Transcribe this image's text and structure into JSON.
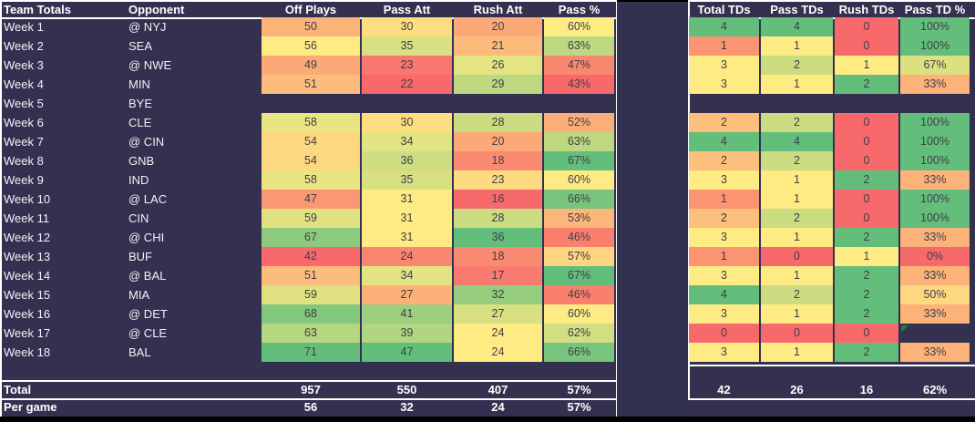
{
  "tables": {
    "left": {
      "headers": [
        "Team Totals",
        "Opponent",
        "Off Plays",
        "Pass Att",
        "Rush Att",
        "Pass %"
      ],
      "total_label": "Total",
      "per_game_label": "Per game",
      "total_values": [
        "957",
        "550",
        "407",
        "57%"
      ],
      "per_game_values": [
        "56",
        "32",
        "24",
        "57%"
      ]
    },
    "right": {
      "headers": [
        "Total TDs",
        "Pass TDs",
        "Rush TDs",
        "Pass TD %"
      ],
      "total_values": [
        "42",
        "26",
        "16",
        "62%"
      ]
    }
  },
  "rows": [
    {
      "week": "Week 1",
      "opponent": "@ NYJ",
      "left": [
        {
          "v": "50",
          "c": "#FCB379"
        },
        {
          "v": "30",
          "c": "#FEDD81"
        },
        {
          "v": "20",
          "c": "#FBAA77"
        },
        {
          "v": "60%",
          "c": "#FFEB84"
        }
      ],
      "right": [
        {
          "v": "4",
          "c": "#63BE7B"
        },
        {
          "v": "4",
          "c": "#63BE7B"
        },
        {
          "v": "0",
          "c": "#F8696B"
        },
        {
          "v": "100%",
          "c": "#63BE7B"
        }
      ]
    },
    {
      "week": "Week 2",
      "opponent": "SEA",
      "left": [
        {
          "v": "56",
          "c": "#FFEB84"
        },
        {
          "v": "35",
          "c": "#D8E082"
        },
        {
          "v": "21",
          "c": "#FCBA7B"
        },
        {
          "v": "63%",
          "c": "#BCD880"
        }
      ],
      "right": [
        {
          "v": "1",
          "c": "#FA9473"
        },
        {
          "v": "1",
          "c": "#FFEB84"
        },
        {
          "v": "0",
          "c": "#F8696B"
        },
        {
          "v": "100%",
          "c": "#63BE7B"
        }
      ]
    },
    {
      "week": "Week 3",
      "opponent": "@ NWE",
      "left": [
        {
          "v": "49",
          "c": "#FBAA77"
        },
        {
          "v": "23",
          "c": "#F9776E"
        },
        {
          "v": "26",
          "c": "#E5E483"
        },
        {
          "v": "47%",
          "c": "#FA8871"
        }
      ],
      "right": [
        {
          "v": "3",
          "c": "#FFEB84"
        },
        {
          "v": "2",
          "c": "#CBDC81"
        },
        {
          "v": "1",
          "c": "#FFEB84"
        },
        {
          "v": "67%",
          "c": "#DCE081"
        }
      ]
    },
    {
      "week": "Week 4",
      "opponent": "MIN",
      "left": [
        {
          "v": "51",
          "c": "#FCBC7B"
        },
        {
          "v": "22",
          "c": "#F8696B"
        },
        {
          "v": "29",
          "c": "#BED880"
        },
        {
          "v": "43%",
          "c": "#F8696B"
        }
      ],
      "right": [
        {
          "v": "3",
          "c": "#FFEB84"
        },
        {
          "v": "1",
          "c": "#FFEB84"
        },
        {
          "v": "2",
          "c": "#63BE7B"
        },
        {
          "v": "33%",
          "c": "#FCB279"
        }
      ]
    },
    {
      "week": "Week 5",
      "opponent": "BYE",
      "left": [],
      "right": []
    },
    {
      "week": "Week 6",
      "opponent": "CLE",
      "left": [
        {
          "v": "58",
          "c": "#EAE583"
        },
        {
          "v": "30",
          "c": "#FEDD81"
        },
        {
          "v": "28",
          "c": "#CBDC81"
        },
        {
          "v": "52%",
          "c": "#FCAE78"
        }
      ],
      "right": [
        {
          "v": "2",
          "c": "#FDC07C"
        },
        {
          "v": "2",
          "c": "#CBDC81"
        },
        {
          "v": "0",
          "c": "#F8696B"
        },
        {
          "v": "100%",
          "c": "#63BE7B"
        }
      ]
    },
    {
      "week": "Week 7",
      "opponent": "@ CIN",
      "left": [
        {
          "v": "54",
          "c": "#FED880"
        },
        {
          "v": "34",
          "c": "#E2E382"
        },
        {
          "v": "20",
          "c": "#FBAA77"
        },
        {
          "v": "63%",
          "c": "#BCD880"
        }
      ],
      "right": [
        {
          "v": "4",
          "c": "#63BE7B"
        },
        {
          "v": "4",
          "c": "#63BE7B"
        },
        {
          "v": "0",
          "c": "#F8696B"
        },
        {
          "v": "100%",
          "c": "#63BE7B"
        }
      ]
    },
    {
      "week": "Week 8",
      "opponent": "GNB",
      "left": [
        {
          "v": "54",
          "c": "#FED880"
        },
        {
          "v": "36",
          "c": "#CEDD81"
        },
        {
          "v": "18",
          "c": "#FA8A71"
        },
        {
          "v": "67%",
          "c": "#63BE7B"
        }
      ],
      "right": [
        {
          "v": "2",
          "c": "#FDC07C"
        },
        {
          "v": "2",
          "c": "#CBDC81"
        },
        {
          "v": "0",
          "c": "#F8696B"
        },
        {
          "v": "100%",
          "c": "#63BE7B"
        }
      ]
    },
    {
      "week": "Week 9",
      "opponent": "IND",
      "left": [
        {
          "v": "58",
          "c": "#EAE583"
        },
        {
          "v": "35",
          "c": "#D8E082"
        },
        {
          "v": "23",
          "c": "#FEDB81"
        },
        {
          "v": "60%",
          "c": "#FFEB84"
        }
      ],
      "right": [
        {
          "v": "3",
          "c": "#FFEB84"
        },
        {
          "v": "1",
          "c": "#FFEB84"
        },
        {
          "v": "2",
          "c": "#63BE7B"
        },
        {
          "v": "33%",
          "c": "#FCB279"
        }
      ]
    },
    {
      "week": "Week 10",
      "opponent": "@ LAC",
      "left": [
        {
          "v": "47",
          "c": "#FA9774"
        },
        {
          "v": "31",
          "c": "#FFEB84"
        },
        {
          "v": "16",
          "c": "#F8696B"
        },
        {
          "v": "66%",
          "c": "#79C47C"
        }
      ],
      "right": [
        {
          "v": "1",
          "c": "#FA9473"
        },
        {
          "v": "1",
          "c": "#FFEB84"
        },
        {
          "v": "0",
          "c": "#F8696B"
        },
        {
          "v": "100%",
          "c": "#63BE7B"
        }
      ]
    },
    {
      "week": "Week 11",
      "opponent": "CIN",
      "left": [
        {
          "v": "59",
          "c": "#E0E282"
        },
        {
          "v": "31",
          "c": "#FFEB84"
        },
        {
          "v": "28",
          "c": "#CBDC81"
        },
        {
          "v": "53%",
          "c": "#FCB57A"
        }
      ],
      "right": [
        {
          "v": "2",
          "c": "#FDC07C"
        },
        {
          "v": "2",
          "c": "#CBDC81"
        },
        {
          "v": "0",
          "c": "#F8696B"
        },
        {
          "v": "100%",
          "c": "#63BE7B"
        }
      ]
    },
    {
      "week": "Week 12",
      "opponent": "@ CHI",
      "left": [
        {
          "v": "67",
          "c": "#8DCA7D"
        },
        {
          "v": "31",
          "c": "#FFEB84"
        },
        {
          "v": "36",
          "c": "#63BE7B"
        },
        {
          "v": "46%",
          "c": "#F9806F"
        }
      ],
      "right": [
        {
          "v": "3",
          "c": "#FFEB84"
        },
        {
          "v": "1",
          "c": "#FFEB84"
        },
        {
          "v": "2",
          "c": "#63BE7B"
        },
        {
          "v": "33%",
          "c": "#FCB279"
        }
      ]
    },
    {
      "week": "Week 13",
      "opponent": "BUF",
      "left": [
        {
          "v": "42",
          "c": "#F8696B"
        },
        {
          "v": "24",
          "c": "#FA8671"
        },
        {
          "v": "18",
          "c": "#FA8A71"
        },
        {
          "v": "57%",
          "c": "#FED480"
        }
      ],
      "right": [
        {
          "v": "1",
          "c": "#FA9473"
        },
        {
          "v": "0",
          "c": "#F8696B"
        },
        {
          "v": "1",
          "c": "#FFEB84"
        },
        {
          "v": "0%",
          "c": "#F8696B"
        }
      ]
    },
    {
      "week": "Week 14",
      "opponent": "@ BAL",
      "left": [
        {
          "v": "51",
          "c": "#FCBC7B"
        },
        {
          "v": "34",
          "c": "#E2E382"
        },
        {
          "v": "17",
          "c": "#F97A6E"
        },
        {
          "v": "67%",
          "c": "#63BE7B"
        }
      ],
      "right": [
        {
          "v": "3",
          "c": "#FFEB84"
        },
        {
          "v": "1",
          "c": "#FFEB84"
        },
        {
          "v": "2",
          "c": "#63BE7B"
        },
        {
          "v": "33%",
          "c": "#FCB279"
        }
      ]
    },
    {
      "week": "Week 15",
      "opponent": "MIA",
      "left": [
        {
          "v": "59",
          "c": "#E0E282"
        },
        {
          "v": "27",
          "c": "#FCB179"
        },
        {
          "v": "32",
          "c": "#97CD7E"
        },
        {
          "v": "46%",
          "c": "#F9806F"
        }
      ],
      "right": [
        {
          "v": "4",
          "c": "#63BE7B"
        },
        {
          "v": "2",
          "c": "#CBDC81"
        },
        {
          "v": "2",
          "c": "#63BE7B"
        },
        {
          "v": "50%",
          "c": "#FED880"
        }
      ]
    },
    {
      "week": "Week 16",
      "opponent": "@ DET",
      "left": [
        {
          "v": "68",
          "c": "#82C77D"
        },
        {
          "v": "41",
          "c": "#9ECF7E"
        },
        {
          "v": "27",
          "c": "#D8E082"
        },
        {
          "v": "60%",
          "c": "#FFEB84"
        }
      ],
      "right": [
        {
          "v": "3",
          "c": "#FFEB84"
        },
        {
          "v": "1",
          "c": "#FFEB84"
        },
        {
          "v": "2",
          "c": "#63BE7B"
        },
        {
          "v": "33%",
          "c": "#FCB279"
        }
      ]
    },
    {
      "week": "Week 17",
      "opponent": "@ CLE",
      "left": [
        {
          "v": "63",
          "c": "#B6D680"
        },
        {
          "v": "39",
          "c": "#B1D580"
        },
        {
          "v": "24",
          "c": "#FFEB84"
        },
        {
          "v": "62%",
          "c": "#D2DE81"
        }
      ],
      "right": [
        {
          "v": "0",
          "c": "#F8696B"
        },
        {
          "v": "0",
          "c": "#F8696B"
        },
        {
          "v": "0",
          "c": "#F8696B"
        },
        {
          "v": "",
          "c": "",
          "error": true
        }
      ]
    },
    {
      "week": "Week 18",
      "opponent": "BAL",
      "left": [
        {
          "v": "71",
          "c": "#63BE7B"
        },
        {
          "v": "47",
          "c": "#63BE7B"
        },
        {
          "v": "24",
          "c": "#FFEB84"
        },
        {
          "v": "66%",
          "c": "#79C47C"
        }
      ],
      "right": [
        {
          "v": "3",
          "c": "#FFEB84"
        },
        {
          "v": "1",
          "c": "#FFEB84"
        },
        {
          "v": "2",
          "c": "#63BE7B"
        },
        {
          "v": "33%",
          "c": "#FCB279"
        }
      ]
    }
  ],
  "colors": {
    "background": "#343150",
    "gap_background": "#323150",
    "grid_border": "#FFFFFF",
    "cell_text": "#3F3F48",
    "label_text": "#F1F1F6",
    "scale_min": "#F8696B",
    "scale_mid": "#FFEB84",
    "scale_max": "#63BE7B",
    "error_flag": "#1F7A44",
    "bottom_strip": "#000000"
  }
}
